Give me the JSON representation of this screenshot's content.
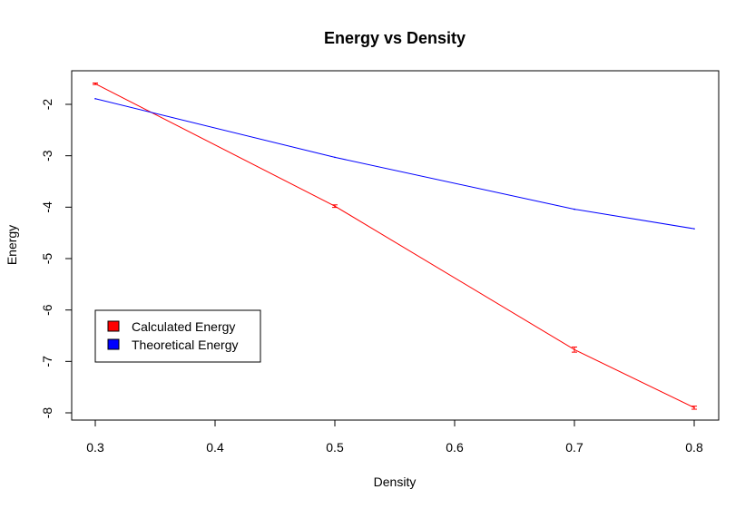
{
  "chart_data": {
    "type": "line",
    "title": "Energy vs Density",
    "xlabel": "Density",
    "ylabel": "Energy",
    "xlim": [
      0.3,
      0.8
    ],
    "ylim": [
      -8,
      -2
    ],
    "xticks": [
      0.3,
      0.4,
      0.5,
      0.6,
      0.7,
      0.8
    ],
    "xtick_labels": [
      "0.3",
      "0.4",
      "0.5",
      "0.6",
      "0.7",
      "0.8"
    ],
    "yticks": [
      -8,
      -7,
      -6,
      -5,
      -4,
      -3,
      -2
    ],
    "ytick_labels": [
      "-8",
      "-7",
      "-6",
      "-5",
      "-4",
      "-3",
      "-2"
    ],
    "grid": false,
    "legend_position": "bottom-left",
    "series": [
      {
        "name": "Calculated Energy",
        "color": "#ff0000",
        "x": [
          0.3,
          0.5,
          0.7,
          0.8
        ],
        "y": [
          -1.6,
          -3.98,
          -6.77,
          -7.9
        ],
        "error": [
          0.015,
          0.025,
          0.05,
          0.03
        ]
      },
      {
        "name": "Theoretical Energy",
        "color": "#0000ff",
        "x": [
          0.3,
          0.5,
          0.7,
          0.8
        ],
        "y": [
          -1.89,
          -3.03,
          -4.04,
          -4.42
        ]
      }
    ]
  }
}
